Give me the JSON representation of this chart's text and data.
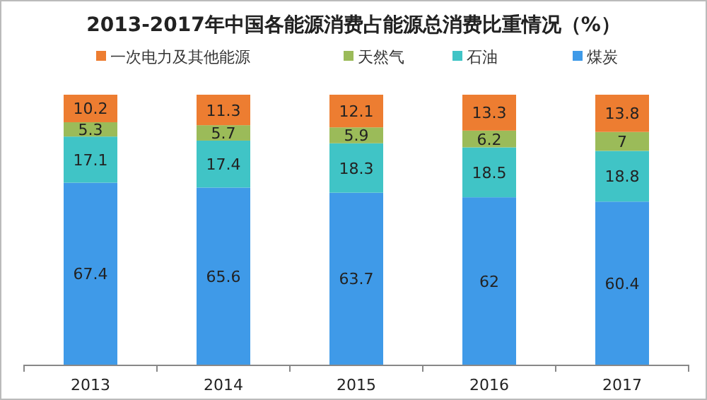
{
  "chart_data": {
    "type": "bar",
    "title": "2013-2017年中国各能源消费占能源总消费比重情况（%）",
    "categories": [
      "2013",
      "2014",
      "2015",
      "2016",
      "2017"
    ],
    "stacked": true,
    "data_labels": true,
    "legend": "top",
    "grid": false,
    "series": [
      {
        "name": "煤炭",
        "color": "#3f9ae8",
        "values": [
          67.4,
          65.6,
          63.7,
          62,
          60.4
        ]
      },
      {
        "name": "石油",
        "color": "#40c4c6",
        "values": [
          17.1,
          17.4,
          18.3,
          18.5,
          18.8
        ]
      },
      {
        "name": "天然气",
        "color": "#9bbb59",
        "values": [
          5.3,
          5.7,
          5.9,
          6.2,
          7
        ]
      },
      {
        "name": "一次电力及其他能源",
        "color": "#ed7d31",
        "values": [
          10.2,
          11.3,
          12.1,
          13.3,
          13.8
        ]
      }
    ]
  }
}
